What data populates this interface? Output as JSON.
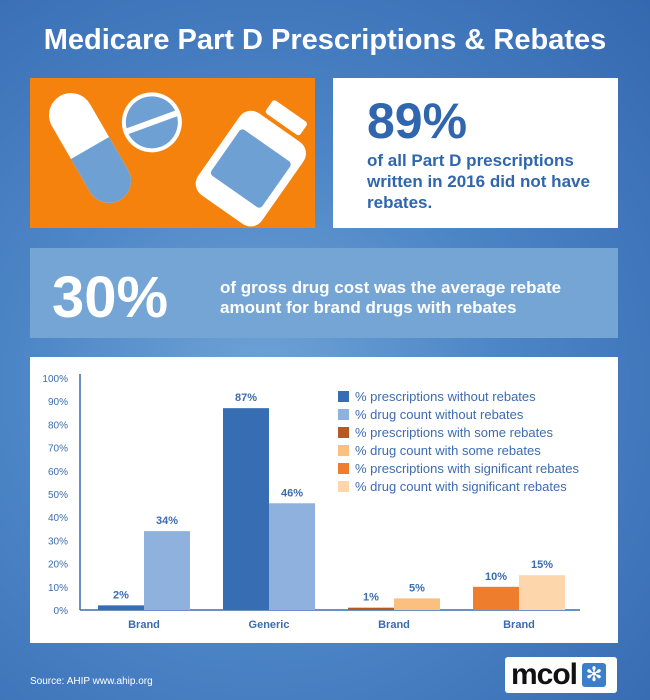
{
  "title": "Medicare Part D Prescriptions & Rebates",
  "stat1": {
    "value": "89%",
    "text": "of all Part D prescriptions written in 2016 did not have rebates."
  },
  "stat2": {
    "value": "30%",
    "text": "of gross drug cost was the average rebate amount for brand drugs with rebates"
  },
  "chart_data": {
    "type": "bar",
    "ylim": [
      0,
      100
    ],
    "yticks": [
      "0%",
      "10%",
      "20%",
      "30%",
      "40%",
      "50%",
      "60%",
      "70%",
      "80%",
      "90%",
      "100%"
    ],
    "categories": [
      "Brand",
      "Generic",
      "Brand",
      "Brand"
    ],
    "bars": [
      {
        "group": 0,
        "series": 0,
        "value": 2,
        "label": "2%"
      },
      {
        "group": 0,
        "series": 1,
        "value": 34,
        "label": "34%"
      },
      {
        "group": 1,
        "series": 0,
        "value": 87,
        "label": "87%"
      },
      {
        "group": 1,
        "series": 1,
        "value": 46,
        "label": "46%"
      },
      {
        "group": 2,
        "series": 2,
        "value": 1,
        "label": "1%"
      },
      {
        "group": 2,
        "series": 3,
        "value": 5,
        "label": "5%"
      },
      {
        "group": 3,
        "series": 4,
        "value": 10,
        "label": "10%"
      },
      {
        "group": 3,
        "series": 5,
        "value": 15,
        "label": "15%"
      }
    ],
    "series": [
      {
        "name": "% prescriptions without rebates",
        "color": "#376db2"
      },
      {
        "name": "% drug count without rebates",
        "color": "#8fb1dd"
      },
      {
        "name": "% prescriptions with some rebates",
        "color": "#b85a20"
      },
      {
        "name": "% drug count with some rebates",
        "color": "#fbbf80"
      },
      {
        "name": "% prescriptions with significant rebates",
        "color": "#ee7d2e"
      },
      {
        "name": "% drug count with significant rebates",
        "color": "#fdd6ac"
      }
    ],
    "legend": "top-right"
  },
  "source": "Source: AHIP www.ahip.org",
  "logo": {
    "text": "mcol"
  }
}
